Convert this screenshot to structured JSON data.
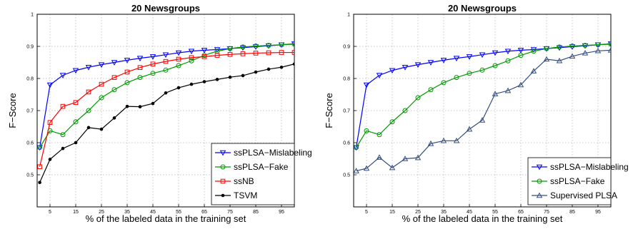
{
  "chart_data": [
    {
      "type": "line",
      "title": "20 Newsgroups",
      "xlabel": "% of the labeled data in the training set",
      "ylabel": "F−Score",
      "xlim": [
        0,
        100
      ],
      "ylim": [
        0.4,
        1.0
      ],
      "xticks": [
        5,
        15,
        25,
        35,
        45,
        55,
        65,
        75,
        85,
        95
      ],
      "yticks": [
        0.5,
        0.6,
        0.7,
        0.8,
        0.9,
        1.0
      ],
      "ytick_labels": [
        "0.5",
        "0.6",
        "0.7",
        "0.8",
        "0.9",
        "1"
      ],
      "x": [
        1,
        5,
        10,
        15,
        20,
        25,
        30,
        35,
        40,
        45,
        50,
        55,
        60,
        65,
        70,
        75,
        80,
        85,
        90,
        95,
        100
      ],
      "legend_position": "bottom-right",
      "grid": true,
      "series": [
        {
          "name": "ssPLSA−Mislabeling",
          "color": "#0000ff",
          "marker": "triangle-down",
          "values": [
            0.585,
            0.78,
            0.81,
            0.825,
            0.835,
            0.843,
            0.85,
            0.857,
            0.863,
            0.868,
            0.874,
            0.88,
            0.885,
            0.888,
            0.89,
            0.893,
            0.896,
            0.899,
            0.902,
            0.905,
            0.908
          ]
        },
        {
          "name": "ssPLSA−Fake",
          "color": "#009900",
          "marker": "circle",
          "values": [
            0.585,
            0.637,
            0.625,
            0.665,
            0.7,
            0.74,
            0.765,
            0.787,
            0.803,
            0.816,
            0.826,
            0.84,
            0.855,
            0.872,
            0.885,
            0.893,
            0.898,
            0.901,
            0.903,
            0.905,
            0.907
          ]
        },
        {
          "name": "ssNB",
          "color": "#ff0000",
          "marker": "square",
          "values": [
            0.525,
            0.663,
            0.713,
            0.725,
            0.758,
            0.782,
            0.803,
            0.82,
            0.834,
            0.845,
            0.853,
            0.86,
            0.865,
            0.868,
            0.872,
            0.875,
            0.877,
            0.879,
            0.88,
            0.881,
            0.881
          ]
        },
        {
          "name": "TSVM",
          "color": "#000000",
          "marker": "dot",
          "values": [
            0.476,
            0.548,
            0.582,
            0.6,
            0.647,
            0.642,
            0.677,
            0.713,
            0.712,
            0.722,
            0.755,
            0.771,
            0.782,
            0.79,
            0.797,
            0.804,
            0.809,
            0.82,
            0.829,
            0.835,
            0.845
          ]
        }
      ]
    },
    {
      "type": "line",
      "title": "20 Newsgroups",
      "xlabel": "% of the labeled data in the training set",
      "ylabel": "F−Score",
      "xlim": [
        0,
        100
      ],
      "ylim": [
        0.4,
        1.0
      ],
      "xticks": [
        5,
        15,
        25,
        35,
        45,
        55,
        65,
        75,
        85,
        95
      ],
      "yticks": [
        0.5,
        0.6,
        0.7,
        0.8,
        0.9,
        1.0
      ],
      "ytick_labels": [
        "0.5",
        "0.6",
        "0.7",
        "0.8",
        "0.9",
        "1"
      ],
      "x": [
        1,
        5,
        10,
        15,
        20,
        25,
        30,
        35,
        40,
        45,
        50,
        55,
        60,
        65,
        70,
        75,
        80,
        85,
        90,
        95,
        100
      ],
      "legend_position": "bottom-right",
      "grid": true,
      "series": [
        {
          "name": "ssPLSA−Mislabeling",
          "color": "#0000ff",
          "marker": "triangle-down",
          "values": [
            0.585,
            0.78,
            0.81,
            0.825,
            0.835,
            0.843,
            0.85,
            0.857,
            0.863,
            0.868,
            0.874,
            0.88,
            0.885,
            0.888,
            0.89,
            0.893,
            0.896,
            0.899,
            0.902,
            0.905,
            0.908
          ]
        },
        {
          "name": "ssPLSA−Fake",
          "color": "#009900",
          "marker": "circle",
          "values": [
            0.585,
            0.637,
            0.625,
            0.665,
            0.7,
            0.74,
            0.765,
            0.787,
            0.803,
            0.816,
            0.826,
            0.84,
            0.855,
            0.872,
            0.885,
            0.893,
            0.898,
            0.901,
            0.903,
            0.905,
            0.907
          ]
        },
        {
          "name": "Supervised PLSA",
          "color": "#334d80",
          "marker": "triangle-up",
          "values": [
            0.512,
            0.52,
            0.554,
            0.522,
            0.55,
            0.553,
            0.597,
            0.606,
            0.606,
            0.642,
            0.67,
            0.752,
            0.762,
            0.78,
            0.823,
            0.86,
            0.855,
            0.869,
            0.879,
            0.886,
            0.888
          ]
        }
      ]
    }
  ]
}
